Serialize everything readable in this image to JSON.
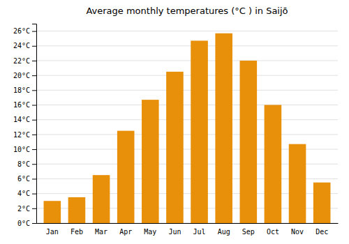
{
  "chart_data": {
    "type": "bar",
    "title": "Average monthly temperatures (°C ) in Saijō",
    "categories": [
      "Jan",
      "Feb",
      "Mar",
      "Apr",
      "May",
      "Jun",
      "Jul",
      "Aug",
      "Sep",
      "Oct",
      "Nov",
      "Dec"
    ],
    "values": [
      3.0,
      3.5,
      6.5,
      12.5,
      16.7,
      20.5,
      24.7,
      25.7,
      22.0,
      16.0,
      10.7,
      5.5
    ],
    "color": "#E8900A",
    "ylim": [
      0,
      27
    ],
    "yticks": [
      {
        "value": 0,
        "label": "0°C"
      },
      {
        "value": 2,
        "label": "2°C"
      },
      {
        "value": 4,
        "label": "4°C"
      },
      {
        "value": 6,
        "label": "6°C"
      },
      {
        "value": 8,
        "label": "8°C"
      },
      {
        "value": 10,
        "label": "10°C"
      },
      {
        "value": 12,
        "label": "12°C"
      },
      {
        "value": 14,
        "label": "14°C"
      },
      {
        "value": 16,
        "label": "16°C"
      },
      {
        "value": 18,
        "label": "18°C"
      },
      {
        "value": 20,
        "label": "20°C"
      },
      {
        "value": 22,
        "label": "22°C"
      },
      {
        "value": 24,
        "label": "24°C"
      },
      {
        "value": 26,
        "label": "26°C"
      }
    ],
    "grid": true
  }
}
